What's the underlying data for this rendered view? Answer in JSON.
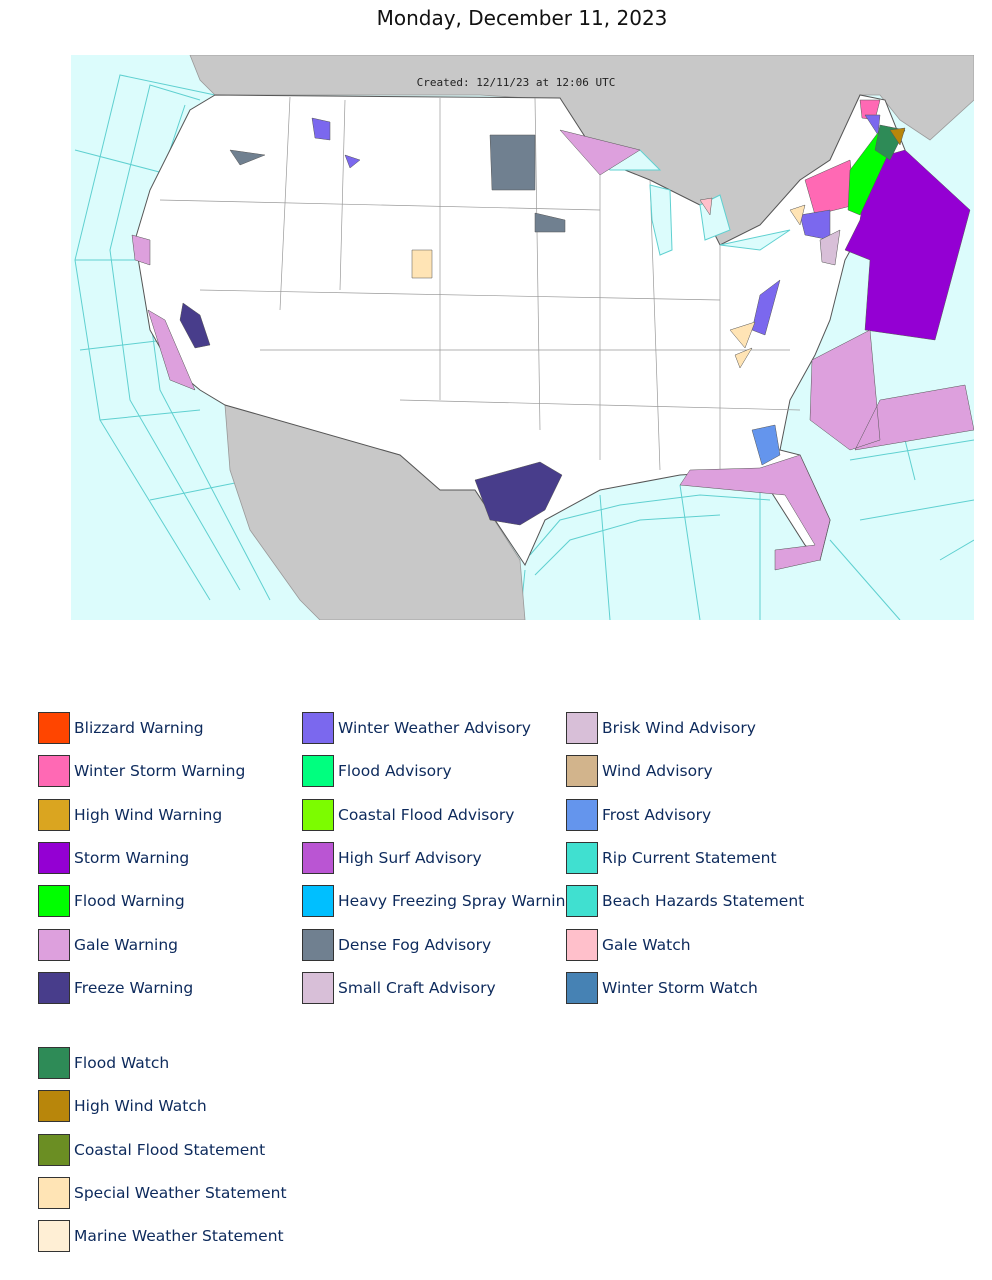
{
  "header": {
    "title": "Monday, December 11, 2023"
  },
  "map": {
    "caption": "Created: 12/11/23 at 12:06 UTC"
  },
  "legend": {
    "groups": [
      [
        {
          "label": "Blizzard Warning",
          "color": "#ff4500"
        },
        {
          "label": "Winter Storm Warning",
          "color": "#ff69b4"
        },
        {
          "label": "High Wind Warning",
          "color": "#daa520"
        },
        {
          "label": "Storm Warning",
          "color": "#9400d3"
        },
        {
          "label": "Flood Warning",
          "color": "#00ff00"
        },
        {
          "label": "Gale Warning",
          "color": "#dda0dd"
        },
        {
          "label": "Freeze Warning",
          "color": "#483d8b"
        },
        {
          "label": "Winter Weather Advisory",
          "color": "#7b68ee"
        },
        {
          "label": "Flood Advisory",
          "color": "#00ff7f"
        },
        {
          "label": "Coastal Flood Advisory",
          "color": "#7cfc00"
        },
        {
          "label": "High Surf Advisory",
          "color": "#ba55d3"
        },
        {
          "label": "Heavy Freezing Spray Warning",
          "color": "#00bfff"
        },
        {
          "label": "Dense Fog Advisory",
          "color": "#708090"
        },
        {
          "label": "Small Craft Advisory",
          "color": "#d8bfd8"
        },
        {
          "label": "Brisk Wind Advisory",
          "color": "#d8bfd8"
        },
        {
          "label": "Wind Advisory",
          "color": "#d2b48c"
        },
        {
          "label": "Frost Advisory",
          "color": "#6495ed"
        },
        {
          "label": "Rip Current Statement",
          "color": "#40e0d0"
        },
        {
          "label": "Beach Hazards Statement",
          "color": "#40e0d0"
        },
        {
          "label": "Gale Watch",
          "color": "#ffc0cb"
        },
        {
          "label": "Winter Storm Watch",
          "color": "#4682b4"
        }
      ],
      [
        {
          "label": "Flood Watch",
          "color": "#2e8b57"
        },
        {
          "label": "High Wind Watch",
          "color": "#b8860b"
        },
        {
          "label": "Coastal Flood Statement",
          "color": "#6b8e23"
        },
        {
          "label": "Special Weather Statement",
          "color": "#ffe4b5"
        },
        {
          "label": "Marine Weather Statement",
          "color": "#ffefd5"
        }
      ]
    ]
  }
}
